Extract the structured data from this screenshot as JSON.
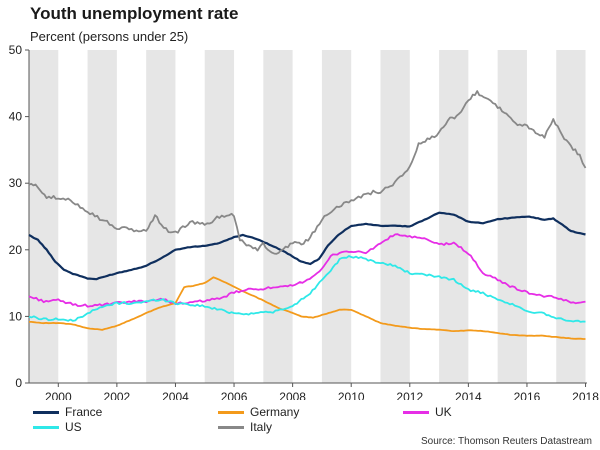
{
  "header": {
    "title": "Youth unemployment rate",
    "subtitle": "Percent (persons under 25)"
  },
  "footer": {
    "source": "Source: Thomson Reuters Datastream"
  },
  "chart_data": {
    "type": "line",
    "title": "Youth unemployment rate",
    "ylabel": "Percent (persons under 25)",
    "xlabel": "",
    "xlim": [
      1999.0,
      2018.05
    ],
    "ylim": [
      0,
      50
    ],
    "yticks": [
      0,
      10,
      20,
      30,
      40,
      50
    ],
    "xticks": [
      2000,
      2002,
      2004,
      2006,
      2008,
      2010,
      2012,
      2014,
      2016,
      2018
    ],
    "shaded_years": [
      1999,
      2001,
      2003,
      2005,
      2007,
      2009,
      2011,
      2013,
      2015,
      2017
    ],
    "shade_color": "#e6e6e6",
    "series": [
      {
        "name": "France",
        "color": "#0f2f5e",
        "x": [
          1999.0,
          1999.3,
          1999.6,
          1999.9,
          2000.2,
          2000.5,
          2000.8,
          2001.0,
          2001.3,
          2001.6,
          2002.0,
          2002.5,
          2003.0,
          2003.5,
          2004.0,
          2004.5,
          2005.0,
          2005.5,
          2006.0,
          2006.3,
          2006.8,
          2007.2,
          2007.6,
          2008.0,
          2008.3,
          2008.6,
          2008.9,
          2009.2,
          2009.5,
          2009.8,
          2010.0,
          2010.5,
          2011.0,
          2011.5,
          2012.0,
          2012.5,
          2013.0,
          2013.5,
          2014.0,
          2014.5,
          2015.0,
          2015.5,
          2016.0,
          2016.3,
          2016.6,
          2016.9,
          2017.2,
          2017.5,
          2017.8,
          2018.0
        ],
        "values": [
          22.2,
          21.5,
          20.0,
          18.2,
          17.0,
          16.4,
          16.0,
          15.7,
          15.6,
          16.0,
          16.5,
          17.0,
          17.6,
          18.7,
          20.0,
          20.4,
          20.6,
          21.0,
          21.9,
          22.2,
          21.6,
          20.8,
          20.0,
          19.0,
          18.2,
          17.9,
          18.6,
          20.6,
          22.0,
          23.0,
          23.6,
          23.9,
          23.6,
          23.6,
          23.5,
          24.5,
          25.6,
          25.3,
          24.2,
          24.0,
          24.6,
          24.8,
          25.0,
          24.8,
          24.5,
          24.7,
          23.8,
          22.8,
          22.5,
          22.3
        ]
      },
      {
        "name": "Germany",
        "color": "#f39a1b",
        "x": [
          1999.0,
          1999.5,
          2000.0,
          2000.5,
          2001.0,
          2001.5,
          2002.0,
          2002.5,
          2003.0,
          2003.5,
          2004.0,
          2004.3,
          2004.6,
          2005.0,
          2005.3,
          2005.5,
          2005.8,
          2006.2,
          2006.6,
          2007.0,
          2007.5,
          2008.0,
          2008.3,
          2008.7,
          2009.0,
          2009.3,
          2009.6,
          2010.0,
          2010.5,
          2011.0,
          2011.5,
          2012.0,
          2012.5,
          2013.0,
          2013.5,
          2014.0,
          2014.5,
          2015.0,
          2015.5,
          2016.0,
          2016.5,
          2017.0,
          2017.5,
          2018.0
        ],
        "values": [
          9.2,
          9.0,
          9.0,
          8.8,
          8.2,
          8.0,
          8.6,
          9.5,
          10.5,
          11.4,
          12.0,
          14.4,
          14.6,
          15.0,
          15.9,
          15.5,
          14.9,
          14.0,
          13.2,
          12.4,
          11.3,
          10.5,
          10.0,
          9.8,
          10.2,
          10.6,
          11.0,
          11.0,
          10.0,
          9.0,
          8.6,
          8.3,
          8.1,
          8.0,
          7.8,
          7.9,
          7.8,
          7.5,
          7.2,
          7.1,
          7.1,
          6.9,
          6.7,
          6.6
        ]
      },
      {
        "name": "UK",
        "color": "#e62ee6",
        "x": [
          1999.0,
          1999.5,
          2000.0,
          2000.5,
          2001.0,
          2001.5,
          2002.0,
          2002.5,
          2003.0,
          2003.5,
          2004.0,
          2004.5,
          2005.0,
          2005.5,
          2006.0,
          2006.5,
          2007.0,
          2007.5,
          2008.0,
          2008.5,
          2009.0,
          2009.3,
          2009.6,
          2010.0,
          2010.5,
          2011.0,
          2011.5,
          2012.0,
          2012.5,
          2013.0,
          2013.5,
          2014.0,
          2014.5,
          2015.0,
          2015.5,
          2016.0,
          2016.5,
          2017.0,
          2017.5,
          2018.0
        ],
        "values": [
          13.0,
          12.3,
          12.4,
          11.8,
          11.6,
          11.7,
          12.0,
          12.2,
          12.3,
          12.6,
          12.0,
          12.0,
          12.4,
          12.6,
          13.6,
          14.0,
          14.2,
          14.3,
          14.6,
          15.5,
          17.0,
          19.0,
          19.6,
          19.8,
          19.5,
          21.0,
          22.3,
          22.0,
          21.6,
          20.8,
          21.0,
          19.5,
          16.5,
          15.5,
          14.4,
          13.6,
          13.1,
          12.8,
          12.1,
          12.2
        ]
      },
      {
        "name": "US",
        "color": "#2fe8e8",
        "x": [
          1999.0,
          1999.5,
          2000.0,
          2000.5,
          2001.0,
          2001.5,
          2002.0,
          2002.5,
          2003.0,
          2003.5,
          2004.0,
          2004.5,
          2005.0,
          2005.5,
          2006.0,
          2006.5,
          2007.0,
          2007.5,
          2008.0,
          2008.3,
          2008.6,
          2009.0,
          2009.3,
          2009.6,
          2010.0,
          2010.5,
          2011.0,
          2011.5,
          2012.0,
          2012.5,
          2013.0,
          2013.5,
          2014.0,
          2014.5,
          2015.0,
          2015.5,
          2016.0,
          2016.5,
          2017.0,
          2017.5,
          2018.0
        ],
        "values": [
          10.0,
          9.6,
          9.6,
          9.3,
          10.5,
          11.4,
          12.0,
          12.0,
          12.2,
          12.6,
          12.0,
          11.8,
          11.5,
          11.0,
          10.5,
          10.4,
          10.6,
          10.8,
          11.5,
          12.5,
          13.5,
          15.5,
          17.0,
          18.5,
          19.0,
          18.6,
          18.0,
          17.6,
          16.5,
          16.2,
          16.0,
          15.5,
          14.0,
          13.5,
          12.4,
          11.8,
          10.7,
          10.6,
          9.8,
          9.3,
          9.2
        ]
      },
      {
        "name": "Italy",
        "color": "#888888",
        "x": [
          1999.0,
          1999.3,
          1999.6,
          2000.0,
          2000.5,
          2001.0,
          2001.5,
          2002.0,
          2002.5,
          2003.0,
          2003.3,
          2003.6,
          2004.0,
          2004.5,
          2005.0,
          2005.5,
          2006.0,
          2006.2,
          2006.5,
          2006.8,
          2007.0,
          2007.3,
          2007.6,
          2008.0,
          2008.3,
          2008.6,
          2009.0,
          2009.5,
          2010.0,
          2010.5,
          2011.0,
          2011.5,
          2012.0,
          2012.3,
          2012.6,
          2013.0,
          2013.3,
          2013.6,
          2014.0,
          2014.3,
          2014.6,
          2015.0,
          2015.3,
          2015.6,
          2016.0,
          2016.3,
          2016.6,
          2016.9,
          2017.2,
          2017.5,
          2017.8,
          2018.0
        ],
        "values": [
          29.8,
          29.5,
          28.0,
          27.7,
          27.3,
          25.8,
          24.5,
          23.3,
          23.0,
          22.8,
          25.2,
          23.2,
          22.5,
          24.2,
          23.7,
          25.0,
          25.3,
          21.6,
          20.6,
          20.1,
          21.0,
          19.3,
          19.8,
          21.2,
          20.8,
          21.8,
          24.6,
          26.6,
          27.2,
          28.5,
          28.8,
          30.0,
          32.5,
          35.8,
          36.5,
          37.4,
          39.5,
          40.0,
          42.5,
          43.7,
          42.8,
          41.5,
          40.4,
          39.0,
          38.5,
          37.5,
          37.0,
          39.8,
          37.0,
          35.5,
          34.2,
          32.3
        ]
      }
    ],
    "legend": {
      "position": "bottom",
      "entries": [
        {
          "label": "France",
          "color": "#0f2f5e"
        },
        {
          "label": "Germany",
          "color": "#f39a1b"
        },
        {
          "label": "UK",
          "color": "#e62ee6"
        },
        {
          "label": "US",
          "color": "#2fe8e8"
        },
        {
          "label": "Italy",
          "color": "#888888"
        }
      ]
    }
  }
}
